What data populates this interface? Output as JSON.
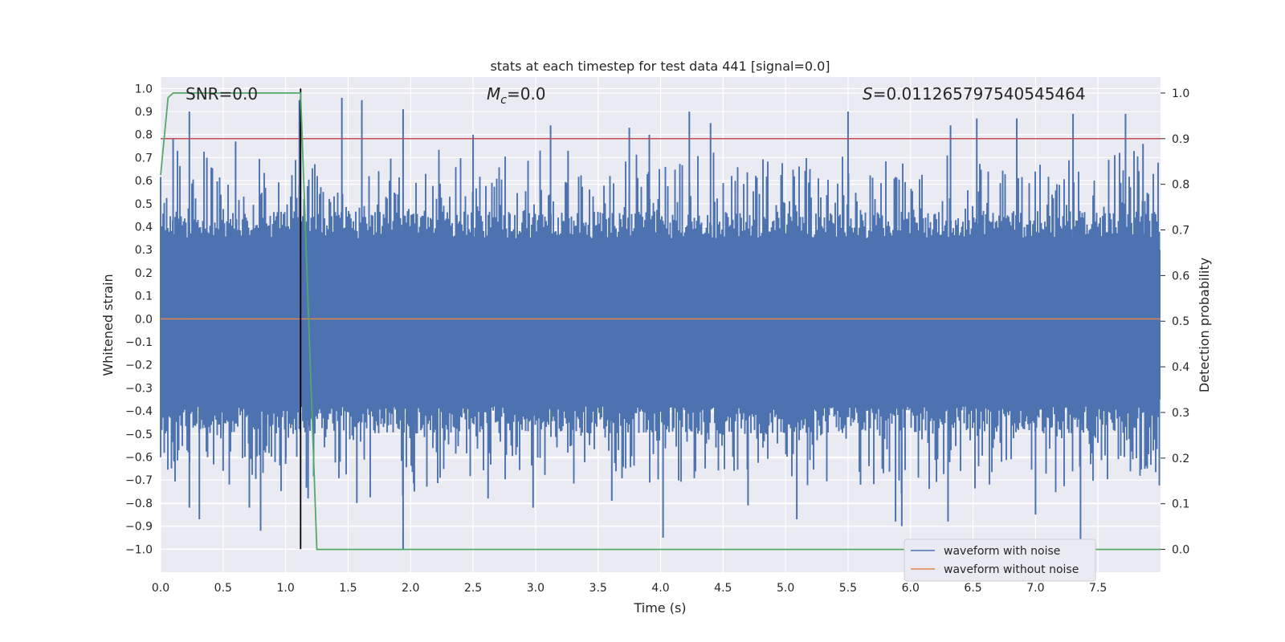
{
  "chart_data": {
    "type": "line",
    "title": "stats at each timestep for test data 441 [signal=0.0]",
    "xlabel": "Time (s)",
    "ylabel_left": "Whitened strain",
    "ylabel_right": "Detection probability",
    "xlim": [
      0.0,
      8.0
    ],
    "ylim_left": [
      -1.1,
      1.05
    ],
    "ylim_right": [
      -0.05,
      1.035
    ],
    "xticks": [
      "0.0",
      "0.5",
      "1.0",
      "1.5",
      "2.0",
      "2.5",
      "3.0",
      "3.5",
      "4.0",
      "4.5",
      "5.0",
      "5.5",
      "6.0",
      "6.5",
      "7.0",
      "7.5"
    ],
    "yticks_left": [
      "1.0",
      "0.9",
      "0.8",
      "0.7",
      "0.6",
      "0.5",
      "0.4",
      "0.3",
      "0.2",
      "0.1",
      "0.0",
      "−0.1",
      "−0.2",
      "−0.3",
      "−0.4",
      "−0.5",
      "−0.6",
      "−0.7",
      "−0.8",
      "−0.9",
      "−1.0"
    ],
    "yticks_right": [
      "1.0",
      "0.9",
      "0.8",
      "0.7",
      "0.6",
      "0.5",
      "0.4",
      "0.3",
      "0.2",
      "0.1",
      "0.0"
    ],
    "annotations": {
      "snr": "SNR=0.0",
      "mc_symbol": "M",
      "mc_sub": "c",
      "mc_value": "=0.0",
      "s_symbol": "S",
      "s_value": "=0.011265797540545464"
    },
    "series": [
      {
        "name": "waveform with noise",
        "axis": "left",
        "color": "#4c72b0",
        "description": "dense noise, approx range -1.0 to 0.96",
        "spikes": [
          {
            "t": 0.1,
            "v": 0.78
          },
          {
            "t": 0.11,
            "v": -0.62
          },
          {
            "t": 0.23,
            "v": 0.9
          },
          {
            "t": 0.23,
            "v": -0.5
          },
          {
            "t": 0.23,
            "v": -0.82
          },
          {
            "t": 0.31,
            "v": -0.87
          },
          {
            "t": 0.37,
            "v": 0.7
          },
          {
            "t": 0.5,
            "v": -0.66
          },
          {
            "t": 0.6,
            "v": 0.77
          },
          {
            "t": 0.71,
            "v": -0.82
          },
          {
            "t": 0.8,
            "v": -0.92
          },
          {
            "t": 1.0,
            "v": -0.63
          },
          {
            "t": 1.11,
            "v": 0.95
          },
          {
            "t": 1.18,
            "v": -0.78
          },
          {
            "t": 1.45,
            "v": 0.96
          },
          {
            "t": 1.57,
            "v": -0.8
          },
          {
            "t": 1.61,
            "v": 0.95
          },
          {
            "t": 1.94,
            "v": -1.0
          },
          {
            "t": 1.94,
            "v": 0.91
          },
          {
            "t": 2.03,
            "v": -0.75
          },
          {
            "t": 2.5,
            "v": 0.8
          },
          {
            "t": 2.62,
            "v": -0.78
          },
          {
            "t": 2.98,
            "v": -0.82
          },
          {
            "t": 3.12,
            "v": 0.84
          },
          {
            "t": 3.26,
            "v": 0.73
          },
          {
            "t": 3.61,
            "v": -0.79
          },
          {
            "t": 3.75,
            "v": 0.83
          },
          {
            "t": 3.91,
            "v": 0.8
          },
          {
            "t": 4.02,
            "v": -0.95
          },
          {
            "t": 4.23,
            "v": 0.9
          },
          {
            "t": 4.4,
            "v": 0.85
          },
          {
            "t": 4.7,
            "v": -0.81
          },
          {
            "t": 5.09,
            "v": -0.87
          },
          {
            "t": 5.5,
            "v": 0.9
          },
          {
            "t": 5.6,
            "v": -0.72
          },
          {
            "t": 5.88,
            "v": -0.88
          },
          {
            "t": 5.93,
            "v": -0.9
          },
          {
            "t": 6.3,
            "v": -0.88
          },
          {
            "t": 6.32,
            "v": 0.84
          },
          {
            "t": 6.53,
            "v": 0.87
          },
          {
            "t": 6.85,
            "v": 0.87
          },
          {
            "t": 7.0,
            "v": -0.85
          },
          {
            "t": 7.3,
            "v": 0.89
          },
          {
            "t": 7.36,
            "v": -0.96
          },
          {
            "t": 7.72,
            "v": 0.89
          },
          {
            "t": 7.86,
            "v": 0.76
          }
        ]
      },
      {
        "name": "waveform without noise",
        "axis": "left",
        "color": "#dd8452",
        "x": [
          0.0,
          8.0
        ],
        "y": [
          0.0,
          0.0
        ]
      },
      {
        "name": "detection probability",
        "axis": "right",
        "color": "#55a868",
        "x": [
          0.0,
          0.06,
          0.1,
          1.12,
          1.25,
          8.0
        ],
        "y": [
          0.82,
          0.99,
          1.0,
          1.0,
          0.0,
          0.0
        ]
      }
    ],
    "threshold": {
      "axis": "right",
      "value": 0.9,
      "color": "#c44e52"
    },
    "vline": {
      "x": 1.12,
      "ymin": -1.0,
      "ymax": 1.0,
      "color": "#000000"
    },
    "legend": {
      "position": "lower right",
      "entries": [
        {
          "label": "waveform with noise",
          "color": "#4c72b0"
        },
        {
          "label": "waveform without noise",
          "color": "#dd8452"
        }
      ]
    }
  }
}
